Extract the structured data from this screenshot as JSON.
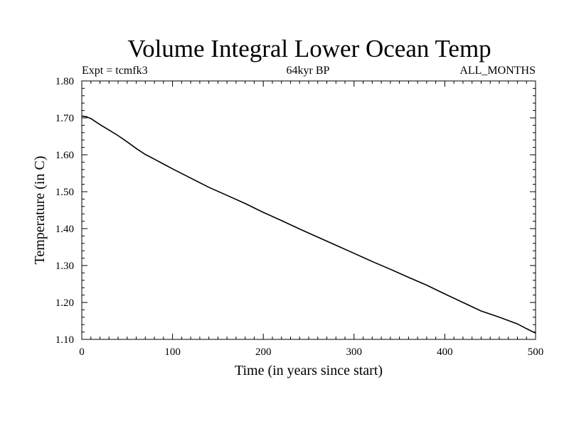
{
  "chart_data": {
    "type": "line",
    "title": "Volume Integral Lower Ocean Temp",
    "subtitle_left": "Expt = tcmfk3",
    "subtitle_center": "64kyr BP",
    "subtitle_right": "ALL_MONTHS",
    "xlabel": "Time (in years since start)",
    "ylabel": "Temperature (in C)",
    "xlim": [
      0,
      500
    ],
    "ylim": [
      1.1,
      1.8
    ],
    "xticks": [
      "0",
      "100",
      "200",
      "300",
      "400",
      "500"
    ],
    "yticks": [
      "1.10",
      "1.20",
      "1.30",
      "1.40",
      "1.50",
      "1.60",
      "1.70",
      "1.80"
    ],
    "grid": false,
    "series": [
      {
        "x": [
          0,
          5,
          10,
          15,
          20,
          30,
          40,
          50,
          60,
          70,
          80,
          90,
          100,
          120,
          140,
          160,
          180,
          200,
          220,
          240,
          260,
          280,
          300,
          320,
          340,
          360,
          380,
          400,
          420,
          440,
          460,
          480,
          490,
          500
        ],
        "y": [
          1.705,
          1.703,
          1.698,
          1.69,
          1.682,
          1.667,
          1.652,
          1.635,
          1.617,
          1.601,
          1.588,
          1.575,
          1.562,
          1.537,
          1.512,
          1.49,
          1.468,
          1.444,
          1.422,
          1.399,
          1.377,
          1.355,
          1.333,
          1.311,
          1.29,
          1.268,
          1.247,
          1.223,
          1.2,
          1.177,
          1.16,
          1.142,
          1.129,
          1.117
        ]
      }
    ]
  }
}
